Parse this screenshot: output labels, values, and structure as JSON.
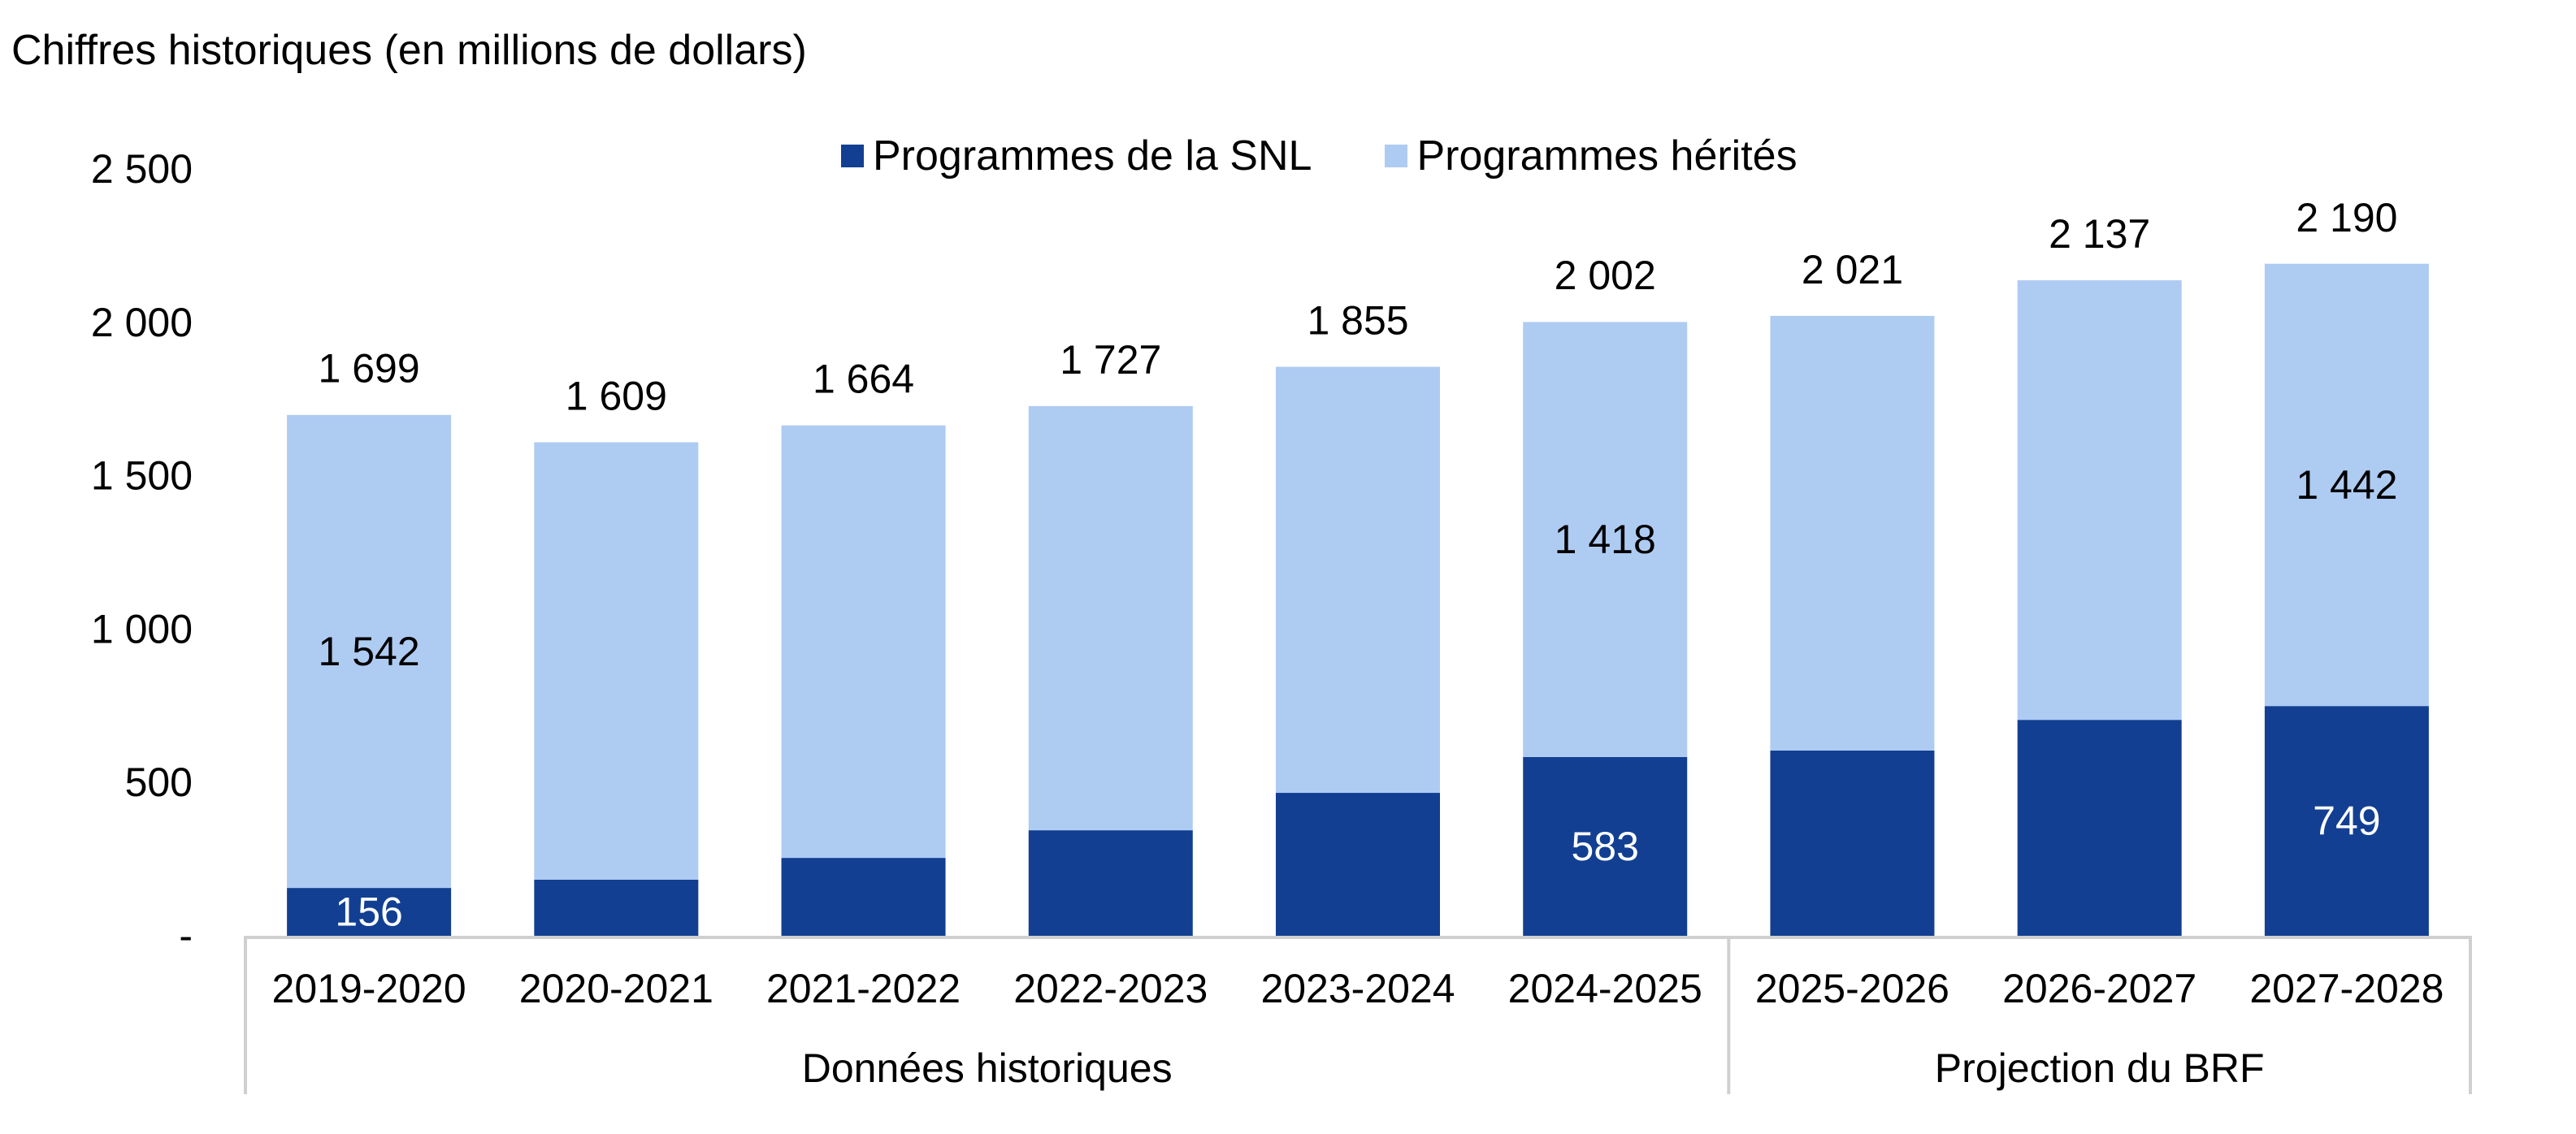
{
  "chart_data": {
    "type": "bar",
    "stacked": true,
    "title": "Chiffres historiques (en millions de dollars)",
    "xlabel": "",
    "ylabel": "",
    "ylim": [
      0,
      2500
    ],
    "yticks": [
      0,
      500,
      1000,
      1500,
      2000,
      2500
    ],
    "ytick_labels": [
      "-",
      "500",
      "1 000",
      "1 500",
      "2 000",
      "2 500"
    ],
    "grid": false,
    "legend_position": "top-center",
    "categories": [
      "2019-2020",
      "2020-2021",
      "2021-2022",
      "2022-2023",
      "2023-2024",
      "2024-2025",
      "2025-2026",
      "2026-2027",
      "2027-2028"
    ],
    "category_groups": [
      {
        "label": "Données historiques",
        "start": 0,
        "end": 5
      },
      {
        "label": "Projection du BRF",
        "start": 6,
        "end": 8
      }
    ],
    "series": [
      {
        "name": "Programmes de la SNL",
        "color": "#123F92",
        "label_color": "#FFFFFF",
        "values": [
          156,
          183,
          254,
          344,
          466,
          583,
          604,
          704,
          749
        ],
        "data_labels": [
          "156",
          null,
          null,
          null,
          null,
          "583",
          null,
          null,
          "749"
        ]
      },
      {
        "name": "Programmes hérités",
        "color": "#AECBF2",
        "label_color": "#000000",
        "values": [
          1542,
          1426,
          1410,
          1383,
          1389,
          1418,
          1417,
          1433,
          1442
        ],
        "data_labels": [
          "1 542",
          null,
          null,
          null,
          null,
          "1 418",
          null,
          null,
          "1 442"
        ]
      }
    ],
    "totals": [
      1699,
      1609,
      1664,
      1727,
      1855,
      2002,
      2021,
      2137,
      2190
    ],
    "total_labels": [
      "1 699",
      "1 609",
      "1 664",
      "1 727",
      "1 855",
      "2 002",
      "2 021",
      "2 137",
      "2 190"
    ]
  },
  "colors": {
    "axis_line": "#D0D0D0",
    "text": "#000000"
  }
}
